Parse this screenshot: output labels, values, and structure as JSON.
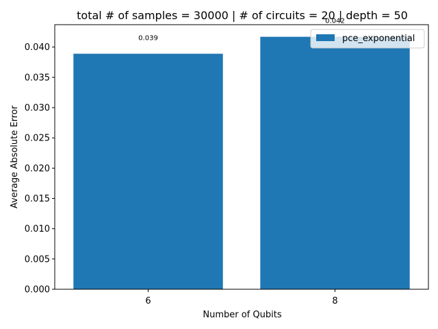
{
  "chart_data": {
    "type": "bar",
    "title": "total # of samples = 30000 | # of circuits = 20 | depth = 50",
    "xlabel": "Number of Qubits",
    "ylabel": "Average Absolute Error",
    "categories": [
      "6",
      "8"
    ],
    "series": [
      {
        "name": "pce_exponential",
        "values": [
          0.0389,
          0.0417
        ],
        "value_labels": [
          "0.039",
          "0.042"
        ],
        "color": "#1f77b4"
      }
    ],
    "ylim": [
      0,
      0.0437
    ],
    "yticks": [
      0.0,
      0.005,
      0.01,
      0.015,
      0.02,
      0.025,
      0.03,
      0.035,
      0.04
    ],
    "ytick_labels": [
      "0.000",
      "0.005",
      "0.010",
      "0.015",
      "0.020",
      "0.025",
      "0.030",
      "0.035",
      "0.040"
    ],
    "grid": false,
    "legend_position": "top-right"
  }
}
